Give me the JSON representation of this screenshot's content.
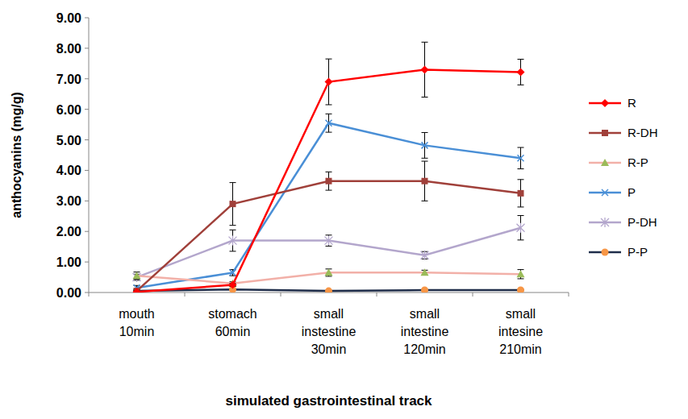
{
  "chart_data": {
    "type": "line",
    "x_label": "simulated gastrointestinal track",
    "y_label": "anthocyanins (mg/g)",
    "categories": [
      "mouth\n10min",
      "stomach\n60min",
      "small\ninstestine\n30min",
      "small\nintestine\n120min",
      "small\nintesine\n210min"
    ],
    "ylim": [
      0,
      9
    ],
    "yticks": [
      {
        "value": 0,
        "label": "0.00"
      },
      {
        "value": 1,
        "label": "1.00"
      },
      {
        "value": 2,
        "label": "2.00"
      },
      {
        "value": 3,
        "label": "3.00"
      },
      {
        "value": 4,
        "label": "4.00"
      },
      {
        "value": 5,
        "label": "5.00"
      },
      {
        "value": 6,
        "label": "6.00"
      },
      {
        "value": 7,
        "label": "7.00"
      },
      {
        "value": 8,
        "label": "8.00"
      },
      {
        "value": 9,
        "label": "9.00"
      }
    ],
    "grid": false,
    "legend": "right",
    "series": [
      {
        "name": "R",
        "color": "#ff0000",
        "marker": "diamond",
        "values": [
          0.02,
          0.25,
          6.9,
          7.3,
          7.22
        ],
        "errors": [
          0.05,
          0.05,
          0.75,
          0.9,
          0.42
        ]
      },
      {
        "name": "R-DH",
        "color": "#a0403a",
        "marker": "square",
        "values": [
          0.05,
          2.9,
          3.65,
          3.65,
          3.25
        ],
        "errors": [
          0.05,
          0.7,
          0.3,
          0.65,
          0.45
        ]
      },
      {
        "name": "R-P",
        "color": "#f2b0a8",
        "marker": "triangle",
        "values": [
          0.55,
          0.3,
          0.65,
          0.65,
          0.6
        ],
        "errors": [
          0.12,
          0.05,
          0.12,
          0.08,
          0.15
        ]
      },
      {
        "name": "P",
        "color": "#4a8fd6",
        "marker": "x",
        "values": [
          0.15,
          0.65,
          5.55,
          4.82,
          4.4
        ],
        "errors": [
          0.08,
          0.1,
          0.3,
          0.42,
          0.35
        ]
      },
      {
        "name": "P-DH",
        "color": "#b3a6cc",
        "marker": "star",
        "values": [
          0.5,
          1.7,
          1.7,
          1.22,
          2.12
        ],
        "errors": [
          0.1,
          0.35,
          0.18,
          0.12,
          0.4
        ]
      },
      {
        "name": "P-P",
        "color": "#1f2d4a",
        "marker": "circle",
        "values": [
          0.05,
          0.1,
          0.05,
          0.08,
          0.08
        ],
        "errors": [
          0.02,
          0.02,
          0.02,
          0.02,
          0.02
        ]
      }
    ]
  }
}
